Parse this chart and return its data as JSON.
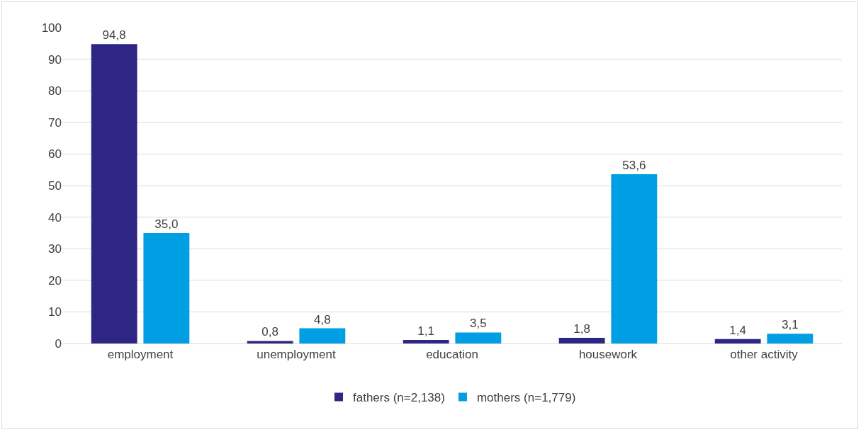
{
  "chart_data": {
    "type": "bar",
    "categories": [
      "employment",
      "unemployment",
      "education",
      "housework",
      "other activity"
    ],
    "series": [
      {
        "name": "fathers (n=2,138)",
        "color": "#2e2683",
        "values": [
          94.8,
          0.8,
          1.1,
          1.8,
          1.4
        ],
        "value_labels": [
          "94,8",
          "0,8",
          "1,1",
          "1,8",
          "1,4"
        ]
      },
      {
        "name": "mothers (n=1,779)",
        "color": "#009fe3",
        "values": [
          35.0,
          4.8,
          3.5,
          53.6,
          3.1
        ],
        "value_labels": [
          "35,0",
          "4,8",
          "3,5",
          "53,6",
          "3,1"
        ]
      }
    ],
    "ylim": [
      0,
      100
    ],
    "yticks": [
      0,
      10,
      20,
      30,
      40,
      50,
      60,
      70,
      80,
      90,
      100
    ],
    "grid": "y",
    "legend": "bottom"
  }
}
